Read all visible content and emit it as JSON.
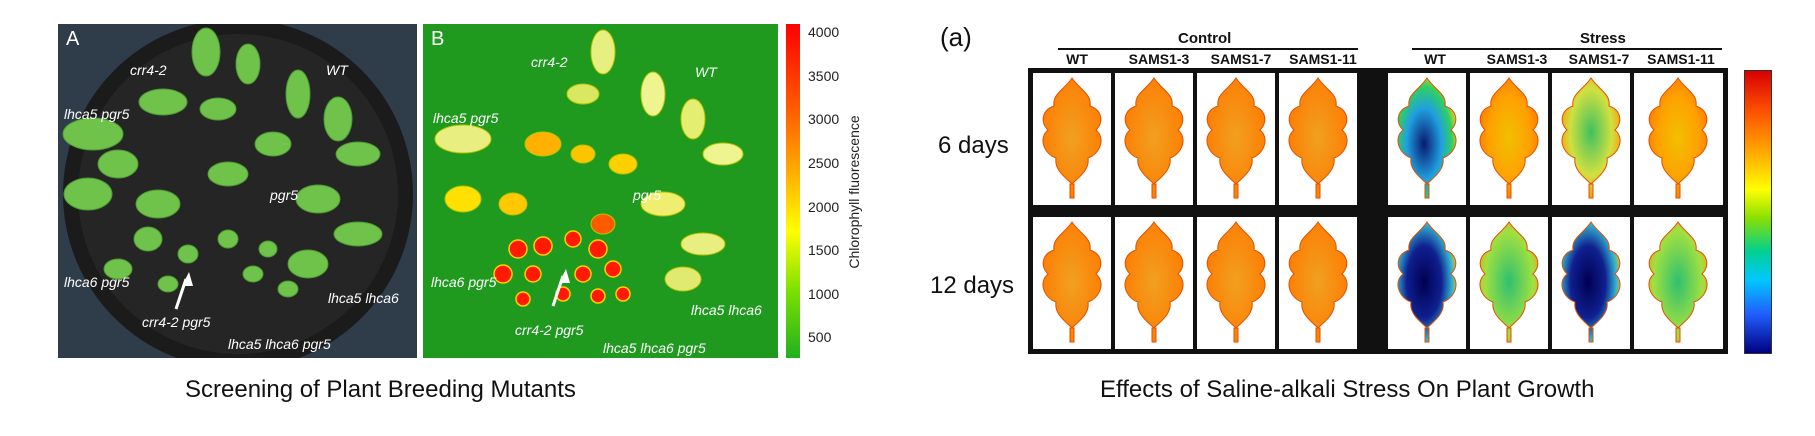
{
  "left_figure": {
    "panel_a": {
      "letter": "A",
      "labels": [
        "crr4-2",
        "WT",
        "lhca5 pgr5",
        "pgr5",
        "lhca6 pgr5",
        "lhca5 lhca6",
        "crr4-2 pgr5",
        "lhca5 lhca6 pgr5"
      ]
    },
    "panel_b": {
      "letter": "B",
      "labels": [
        "crr4-2",
        "WT",
        "lhca5 pgr5",
        "pgr5",
        "lhca6 pgr5",
        "lhca5 lhca6",
        "crr4-2 pgr5",
        "lhca5 lhca6 pgr5"
      ]
    },
    "colorbar": {
      "label": "Chlorophyll fluorescence",
      "ticks": [
        "4000",
        "3500",
        "3000",
        "2500",
        "2000",
        "1500",
        "1000",
        "500"
      ]
    },
    "caption": "Screening of Plant Breeding Mutants"
  },
  "right_figure": {
    "label": "(a)",
    "groups": [
      {
        "name": "Control",
        "columns": [
          "WT",
          "SAMS1-3",
          "SAMS1-7",
          "SAMS1-11"
        ]
      },
      {
        "name": "Stress",
        "columns": [
          "WT",
          "SAMS1-3",
          "SAMS1-7",
          "SAMS1-11"
        ]
      }
    ],
    "rows": [
      "6 days",
      "12 days"
    ],
    "caption": "Effects of Saline-alkali Stress On Plant Growth"
  }
}
